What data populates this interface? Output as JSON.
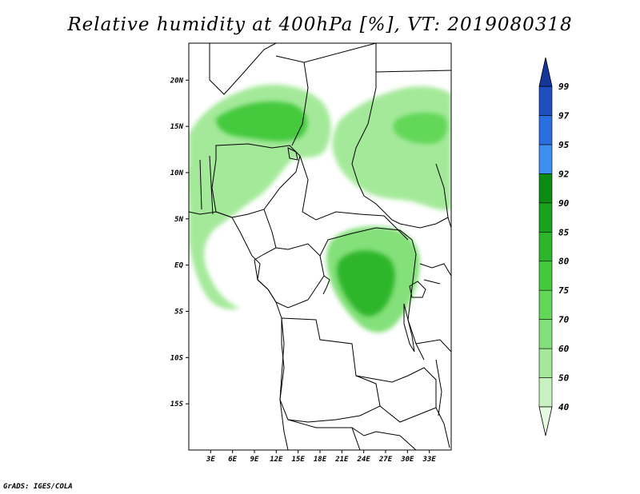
{
  "title": "Relative humidity at 400hPa [%], VT: 2019080318",
  "footer": "GrADS: IGES/COLA",
  "map": {
    "variable": "Relative humidity",
    "level": "400hPa",
    "units": "%",
    "valid_time": "2019080318",
    "lon_range": [
      0,
      36
    ],
    "lat_range": [
      -20,
      24
    ],
    "lon_ticks": [
      "3E",
      "6E",
      "9E",
      "12E",
      "15E",
      "18E",
      "21E",
      "24E",
      "27E",
      "30E",
      "33E"
    ],
    "lat_ticks": [
      "20N",
      "15N",
      "10N",
      "5N",
      "EQ",
      "5S",
      "10S",
      "15S"
    ],
    "regions": [
      {
        "name": "sahel-west",
        "level": 50
      },
      {
        "name": "sahel-west-core",
        "level": 75
      },
      {
        "name": "sahel-east",
        "level": 50
      },
      {
        "name": "sahel-east-core",
        "level": 70
      },
      {
        "name": "congo-basin",
        "level": 60
      },
      {
        "name": "congo-basin-core",
        "level": 80
      }
    ]
  },
  "colorbar": {
    "levels": [
      "40",
      "50",
      "60",
      "70",
      "75",
      "80",
      "85",
      "90",
      "92",
      "95",
      "97",
      "99"
    ],
    "colors": [
      "#e7fae3",
      "#c8f2c0",
      "#a4e99a",
      "#84e07a",
      "#62d758",
      "#44c93c",
      "#2db62a",
      "#19a31c",
      "#0a8c12",
      "#3d8ff0",
      "#2a6fe0",
      "#1e4fc0",
      "#15379a"
    ]
  }
}
